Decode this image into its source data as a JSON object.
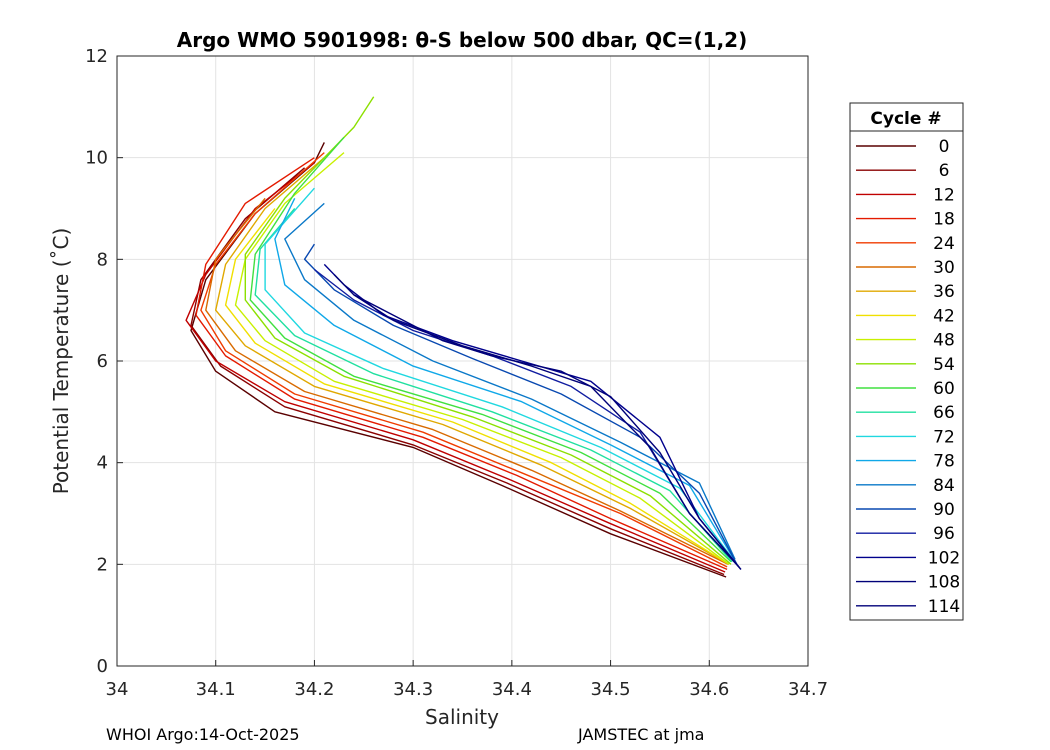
{
  "chart_data": {
    "type": "line",
    "title": "Argo WMO 5901998: θ-S below 500 dbar,  QC=(1,2)",
    "xlabel": "Salinity",
    "ylabel": "Potential Temperature (˚C)",
    "xlim": [
      34,
      34.7
    ],
    "ylim": [
      0,
      12
    ],
    "xticks": [
      "34",
      "34.1",
      "34.2",
      "34.3",
      "34.4",
      "34.5",
      "34.6",
      "34.7"
    ],
    "yticks": [
      "0",
      "2",
      "4",
      "6",
      "8",
      "10",
      "12"
    ],
    "grid": true,
    "legend_position": "right-outside",
    "legend": {
      "title": "Cycle #",
      "entries": [
        "0",
        "6",
        "12",
        "18",
        "24",
        "30",
        "36",
        "42",
        "48",
        "54",
        "60",
        "66",
        "72",
        "78",
        "84",
        "90",
        "96",
        "102",
        "108",
        "114"
      ],
      "colors": [
        "#5a0000",
        "#8a0000",
        "#c00000",
        "#e41a00",
        "#f03c00",
        "#d86a00",
        "#e0a800",
        "#f0e000",
        "#c8f000",
        "#8ce000",
        "#40e040",
        "#20e0a0",
        "#20d8e0",
        "#10a8e8",
        "#0a78c8",
        "#0848b0",
        "#101ca0",
        "#00008c",
        "#000078",
        "#00007a"
      ]
    },
    "series": [
      {
        "name": "cycle 0",
        "x": [
          34.617,
          34.5,
          34.39,
          34.3,
          34.16,
          34.1,
          34.075,
          34.09,
          34.14,
          34.2,
          34.21
        ],
        "y": [
          1.75,
          2.6,
          3.55,
          4.3,
          5.0,
          5.8,
          6.6,
          7.6,
          8.9,
          9.9,
          10.3
        ]
      },
      {
        "name": "cycle 6",
        "x": [
          34.615,
          34.5,
          34.395,
          34.3,
          34.17,
          34.105,
          34.075,
          34.085,
          34.13,
          34.19
        ],
        "y": [
          1.8,
          2.7,
          3.6,
          4.35,
          5.1,
          5.9,
          6.7,
          7.6,
          8.8,
          9.8
        ]
      },
      {
        "name": "cycle 12",
        "x": [
          34.616,
          34.5,
          34.4,
          34.3,
          34.17,
          34.1,
          34.07,
          34.09,
          34.14,
          34.2
        ],
        "y": [
          1.85,
          2.8,
          3.65,
          4.45,
          5.2,
          6.0,
          6.8,
          7.7,
          9.0,
          9.9
        ]
      },
      {
        "name": "cycle 18",
        "x": [
          34.618,
          34.5,
          34.405,
          34.31,
          34.18,
          34.11,
          34.08,
          34.09,
          34.13,
          34.2
        ],
        "y": [
          1.9,
          2.9,
          3.75,
          4.5,
          5.25,
          6.1,
          6.9,
          7.9,
          9.1,
          10.0
        ]
      },
      {
        "name": "cycle 24",
        "x": [
          34.618,
          34.51,
          34.41,
          34.31,
          34.18,
          34.11,
          34.085,
          34.1,
          34.14,
          34.21
        ],
        "y": [
          1.95,
          3.0,
          3.8,
          4.6,
          5.35,
          6.2,
          7.0,
          7.9,
          8.9,
          10.1
        ]
      },
      {
        "name": "cycle 30",
        "x": [
          34.619,
          34.51,
          34.42,
          34.32,
          34.19,
          34.12,
          34.09,
          34.1,
          34.15
        ],
        "y": [
          2.0,
          3.05,
          3.85,
          4.65,
          5.4,
          6.2,
          7.0,
          8.0,
          9.2
        ]
      },
      {
        "name": "cycle 36",
        "x": [
          34.62,
          34.52,
          34.43,
          34.33,
          34.2,
          34.13,
          34.1,
          34.11,
          34.15,
          34.21
        ],
        "y": [
          2.0,
          3.1,
          3.95,
          4.75,
          5.5,
          6.3,
          7.0,
          7.9,
          9.0,
          10.0
        ]
      },
      {
        "name": "cycle 42",
        "x": [
          34.62,
          34.52,
          34.44,
          34.34,
          34.21,
          34.14,
          34.11,
          34.12,
          34.16
        ],
        "y": [
          2.0,
          3.2,
          4.0,
          4.8,
          5.55,
          6.35,
          7.1,
          8.0,
          9.0
        ]
      },
      {
        "name": "cycle 48",
        "x": [
          34.62,
          34.53,
          34.45,
          34.35,
          34.22,
          34.15,
          34.12,
          34.13,
          34.17,
          34.23
        ],
        "y": [
          2.0,
          3.3,
          4.1,
          4.85,
          5.6,
          6.4,
          7.1,
          8.0,
          9.1,
          10.1
        ]
      },
      {
        "name": "cycle 54",
        "x": [
          34.622,
          34.54,
          34.46,
          34.36,
          34.23,
          34.16,
          34.13,
          34.13,
          34.17,
          34.24,
          34.26
        ],
        "y": [
          2.0,
          3.35,
          4.15,
          4.9,
          5.7,
          6.45,
          7.2,
          8.1,
          9.2,
          10.6,
          11.2
        ]
      },
      {
        "name": "cycle 60",
        "x": [
          34.622,
          34.55,
          34.47,
          34.37,
          34.24,
          34.17,
          34.135,
          34.14,
          34.18,
          34.23
        ],
        "y": [
          2.05,
          3.4,
          4.2,
          4.95,
          5.7,
          6.45,
          7.2,
          8.1,
          9.3,
          10.4
        ]
      },
      {
        "name": "cycle 66",
        "x": [
          34.623,
          34.56,
          34.48,
          34.38,
          34.26,
          34.18,
          34.14,
          34.145,
          34.18
        ],
        "y": [
          2.05,
          3.45,
          4.25,
          5.0,
          5.75,
          6.5,
          7.3,
          8.2,
          9.0
        ]
      },
      {
        "name": "cycle 72",
        "x": [
          34.624,
          34.57,
          34.49,
          34.39,
          34.27,
          34.19,
          34.15,
          34.15,
          34.2
        ],
        "y": [
          2.1,
          3.5,
          4.3,
          5.1,
          5.85,
          6.55,
          7.4,
          8.3,
          9.4
        ]
      },
      {
        "name": "cycle 78",
        "x": [
          34.625,
          34.58,
          34.5,
          34.41,
          34.3,
          34.22,
          34.17,
          34.16,
          34.18
        ],
        "y": [
          2.1,
          3.55,
          4.35,
          5.2,
          5.9,
          6.7,
          7.5,
          8.4,
          9.2
        ]
      },
      {
        "name": "cycle 84",
        "x": [
          34.626,
          34.59,
          34.51,
          34.42,
          34.32,
          34.24,
          34.19,
          34.17,
          34.21
        ],
        "y": [
          2.1,
          3.6,
          4.4,
          5.25,
          6.0,
          6.8,
          7.6,
          8.4,
          9.1
        ]
      },
      {
        "name": "cycle 90",
        "x": [
          34.628,
          34.59,
          34.53,
          34.45,
          34.36,
          34.28,
          34.22,
          34.19,
          34.2
        ],
        "y": [
          2.0,
          3.4,
          4.5,
          5.35,
          6.05,
          6.7,
          7.4,
          8.0,
          8.3
        ]
      },
      {
        "name": "cycle 96",
        "x": [
          34.63,
          34.58,
          34.53,
          34.46,
          34.38,
          34.3,
          34.24,
          34.2
        ],
        "y": [
          1.95,
          3.0,
          4.6,
          5.5,
          6.1,
          6.6,
          7.2,
          7.8
        ]
      },
      {
        "name": "cycle 102",
        "x": [
          34.632,
          34.59,
          34.55,
          34.48,
          34.41,
          34.34,
          34.27,
          34.23,
          34.21
        ],
        "y": [
          1.9,
          2.9,
          4.5,
          5.6,
          6.0,
          6.4,
          6.9,
          7.5,
          7.9
        ]
      },
      {
        "name": "cycle 108",
        "x": [
          34.63,
          34.58,
          34.54,
          34.48,
          34.42,
          34.35,
          34.28,
          34.24,
          34.22
        ],
        "y": [
          1.95,
          3.0,
          4.3,
          5.5,
          5.9,
          6.3,
          6.8,
          7.3,
          7.7
        ]
      },
      {
        "name": "cycle 114",
        "x": [
          34.632,
          34.59,
          34.55,
          34.5,
          34.45,
          34.38,
          34.33,
          34.28,
          34.24
        ],
        "y": [
          1.9,
          2.9,
          4.2,
          5.3,
          5.8,
          6.1,
          6.4,
          6.9,
          7.3
        ]
      }
    ]
  },
  "footer": {
    "left": "WHOI Argo:14-Oct-2025",
    "right": "JAMSTEC at jma"
  }
}
